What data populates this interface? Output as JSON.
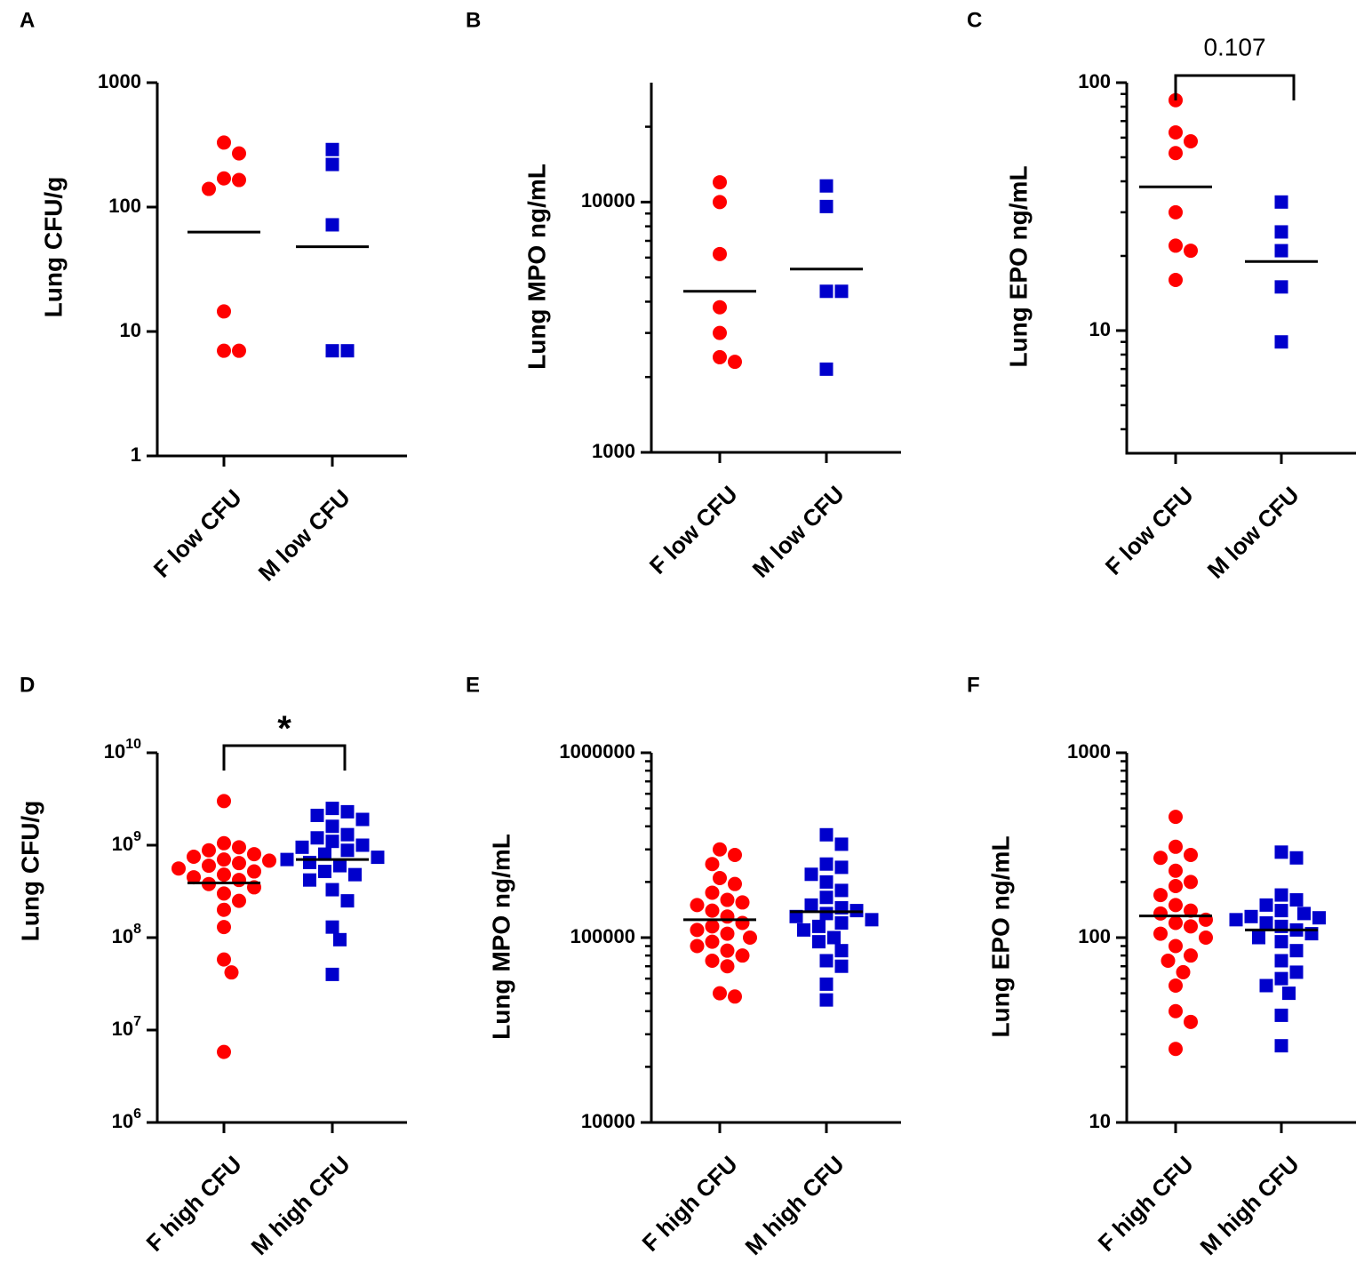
{
  "colors": {
    "female": "#ff0000",
    "male": "#0000cc",
    "axis": "#000000"
  },
  "chart_data": [
    {
      "panel": "A",
      "type": "scatter",
      "yscale": "log",
      "ylabel": "Lung CFU/g",
      "yticks": [
        "1",
        "10",
        "100",
        "1000"
      ],
      "ylim": [
        1,
        1000
      ],
      "categories": [
        "F low CFU",
        "M low CFU"
      ],
      "series": [
        {
          "name": "F low CFU",
          "marker": "circle",
          "median": 63,
          "values": [
            330,
            270,
            170,
            165,
            140,
            14.5,
            7,
            7
          ]
        },
        {
          "name": "M low CFU",
          "marker": "square",
          "median": 48,
          "values": [
            290,
            220,
            72,
            7,
            7
          ]
        }
      ],
      "annotation": null
    },
    {
      "panel": "B",
      "type": "scatter",
      "yscale": "log",
      "ylabel": "Lung MPO ng/mL",
      "yticks": [
        "1000",
        "10000"
      ],
      "ylim": [
        1000,
        30000
      ],
      "categories": [
        "F low CFU",
        "M low CFU"
      ],
      "series": [
        {
          "name": "F low CFU",
          "marker": "circle",
          "median": 4400,
          "values": [
            12000,
            10000,
            6200,
            3800,
            3000,
            2400,
            2300
          ]
        },
        {
          "name": "M low CFU",
          "marker": "square",
          "median": 5400,
          "values": [
            11600,
            9600,
            4400,
            4400,
            2150
          ]
        }
      ],
      "annotation": null
    },
    {
      "panel": "C",
      "type": "scatter",
      "yscale": "log",
      "ylabel": "Lung EPO ng/mL",
      "yticks": [
        "10",
        "100"
      ],
      "ylim": [
        3.2,
        100
      ],
      "categories": [
        "F low CFU",
        "M low CFU"
      ],
      "series": [
        {
          "name": "F low CFU",
          "marker": "circle",
          "median": 38,
          "values": [
            85,
            63,
            58,
            52,
            30,
            22,
            21,
            16
          ]
        },
        {
          "name": "M low CFU",
          "marker": "square",
          "median": 19,
          "values": [
            33,
            25,
            21,
            15,
            9
          ]
        }
      ],
      "annotation": "0.107"
    },
    {
      "panel": "D",
      "type": "scatter",
      "yscale": "log",
      "ylabel": "Lung CFU/g",
      "yticks": [
        "10^6",
        "10^7",
        "10^8",
        "10^9",
        "10^10"
      ],
      "ylim": [
        1000000,
        10000000000
      ],
      "categories": [
        "F high CFU",
        "M high CFU"
      ],
      "series": [
        {
          "name": "F high CFU",
          "marker": "circle",
          "median": 390000000,
          "values": [
            3000000000,
            1050000000,
            950000000,
            880000000,
            800000000,
            750000000,
            700000000,
            680000000,
            640000000,
            600000000,
            560000000,
            520000000,
            480000000,
            450000000,
            420000000,
            380000000,
            350000000,
            300000000,
            250000000,
            200000000,
            130000000,
            58000000,
            42000000,
            5800000
          ]
        },
        {
          "name": "M high CFU",
          "marker": "square",
          "median": 700000000,
          "values": [
            2500000000,
            2300000000,
            2100000000,
            1900000000,
            1600000000,
            1300000000,
            1200000000,
            1100000000,
            1000000000,
            950000000,
            880000000,
            800000000,
            740000000,
            700000000,
            650000000,
            600000000,
            520000000,
            480000000,
            420000000,
            330000000,
            250000000,
            130000000,
            95000000,
            40000000
          ]
        }
      ],
      "annotation": "*"
    },
    {
      "panel": "E",
      "type": "scatter",
      "yscale": "log",
      "ylabel": "Lung MPO ng/mL",
      "yticks": [
        "10000",
        "100000",
        "1000000"
      ],
      "ylim": [
        10000,
        1000000
      ],
      "categories": [
        "F high CFU",
        "M high CFU"
      ],
      "series": [
        {
          "name": "F high CFU",
          "marker": "circle",
          "median": 125000,
          "values": [
            300000,
            280000,
            250000,
            210000,
            195000,
            175000,
            160000,
            155000,
            150000,
            140000,
            130000,
            120000,
            115000,
            110000,
            105000,
            100000,
            95000,
            90000,
            85000,
            80000,
            75000,
            70000,
            50000,
            48000
          ]
        },
        {
          "name": "M high CFU",
          "marker": "square",
          "median": 138000,
          "values": [
            360000,
            320000,
            250000,
            240000,
            220000,
            200000,
            180000,
            165000,
            150000,
            145000,
            140000,
            135000,
            130000,
            125000,
            120000,
            115000,
            110000,
            100000,
            95000,
            85000,
            75000,
            70000,
            56000,
            46000
          ]
        }
      ],
      "annotation": null
    },
    {
      "panel": "F",
      "type": "scatter",
      "yscale": "log",
      "ylabel": "Lung EPO ng/mL",
      "yticks": [
        "10",
        "100",
        "1000"
      ],
      "ylim": [
        10,
        1000
      ],
      "categories": [
        "F high CFU",
        "M high CFU"
      ],
      "series": [
        {
          "name": "F high CFU",
          "marker": "circle",
          "median": 131,
          "values": [
            450,
            310,
            280,
            270,
            230,
            200,
            190,
            170,
            150,
            140,
            135,
            125,
            120,
            115,
            105,
            100,
            90,
            80,
            75,
            65,
            55,
            40,
            35,
            25
          ]
        },
        {
          "name": "M high CFU",
          "marker": "square",
          "median": 110,
          "values": [
            290,
            270,
            170,
            160,
            150,
            140,
            135,
            130,
            128,
            125,
            120,
            115,
            110,
            105,
            100,
            95,
            85,
            75,
            65,
            60,
            55,
            50,
            38,
            26
          ]
        }
      ],
      "annotation": null
    }
  ]
}
